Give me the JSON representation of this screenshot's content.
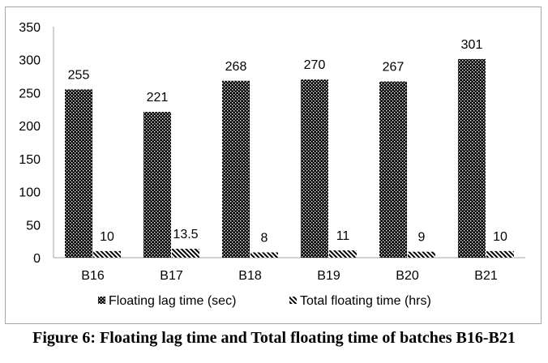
{
  "chart_data": {
    "type": "bar",
    "categories": [
      "B16",
      "B17",
      "B18",
      "B19",
      "B20",
      "B21"
    ],
    "series": [
      {
        "name": "Floating lag time (sec)",
        "values": [
          255,
          221,
          268,
          270,
          267,
          301
        ],
        "labels": [
          "255",
          "221",
          "268",
          "270",
          "267",
          "301"
        ],
        "pattern": "dots"
      },
      {
        "name": "Total floating time (hrs)",
        "values": [
          10,
          13.5,
          8,
          11,
          9,
          10
        ],
        "labels": [
          "10",
          "13.5",
          "8",
          "11",
          "9",
          "10"
        ],
        "pattern": "diagonal"
      }
    ],
    "ylim": [
      0,
      350
    ],
    "yticks": [
      "0",
      "50",
      "100",
      "150",
      "200",
      "250",
      "300",
      "350"
    ],
    "ytick_values": [
      0,
      50,
      100,
      150,
      200,
      250,
      300,
      350
    ],
    "grid": false,
    "legend": "bottom",
    "colors": {
      "bar": "#000000",
      "axis": "#a6a6a6"
    }
  },
  "caption": "Figure 6: Floating lag time and Total floating time of batches B16-B21"
}
